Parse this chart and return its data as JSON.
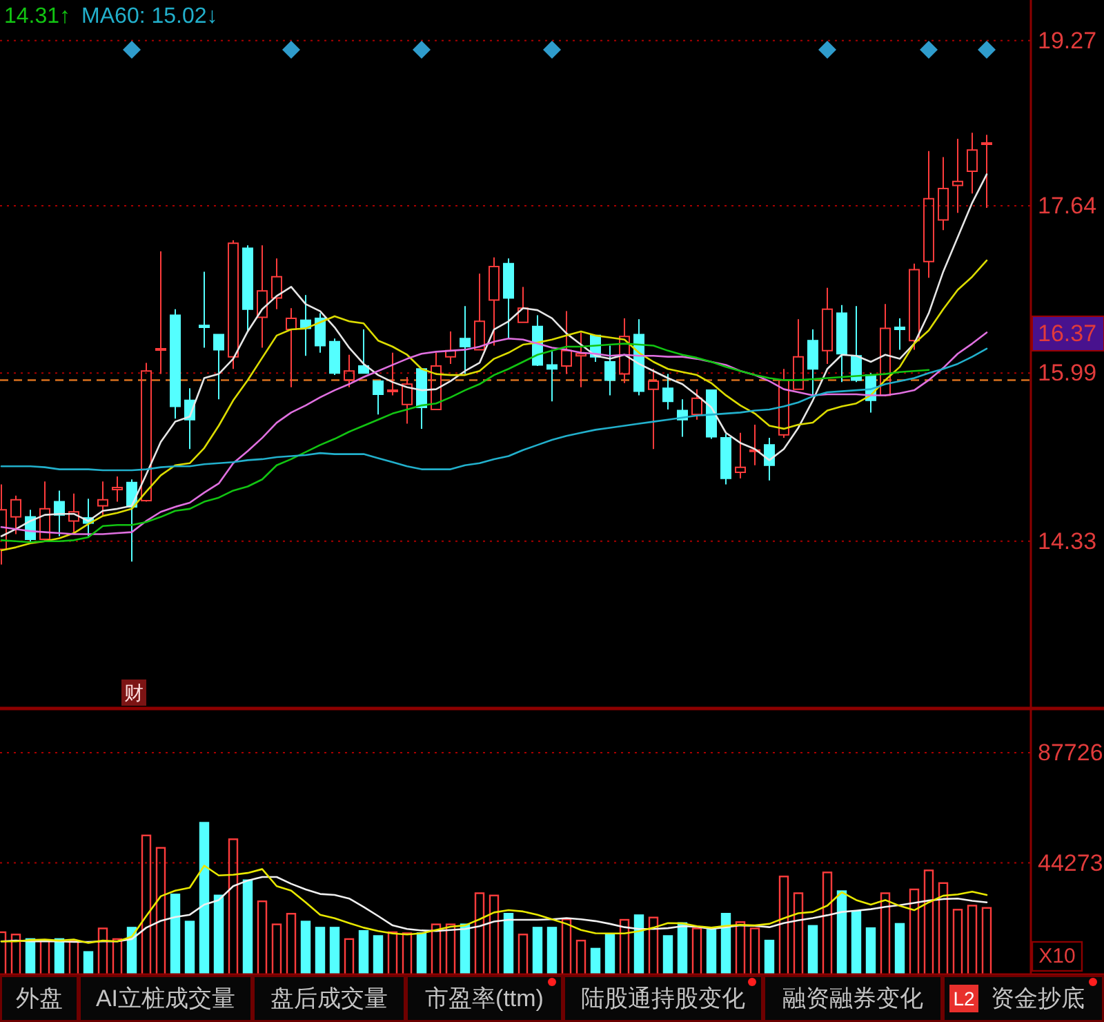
{
  "chart_data": [
    {
      "type": "candlestick",
      "categories": [
        null,
        null,
        null,
        null,
        null,
        null,
        null,
        null,
        null,
        null,
        null,
        null,
        null,
        null,
        null,
        null,
        null,
        null,
        null,
        null,
        null,
        null,
        null,
        null,
        null,
        null,
        null,
        null,
        null,
        null,
        null,
        null,
        null,
        null,
        null,
        null,
        null,
        null,
        null,
        null,
        null,
        null,
        null,
        null,
        null,
        null,
        null,
        null,
        null,
        null,
        null,
        null,
        null,
        null,
        null,
        null,
        null,
        null,
        null,
        null,
        null,
        null,
        null,
        null,
        null,
        null,
        null,
        null,
        null
      ],
      "ohlc": [
        [
          14.25,
          14.89,
          14.1,
          14.64
        ],
        [
          14.57,
          14.78,
          14.4,
          14.74
        ],
        [
          14.57,
          14.64,
          14.31,
          14.35
        ],
        [
          14.35,
          14.92,
          14.33,
          14.65
        ],
        [
          14.72,
          14.83,
          14.38,
          14.59
        ],
        [
          14.53,
          14.8,
          14.4,
          14.62
        ],
        [
          14.56,
          14.75,
          14.38,
          14.51
        ],
        [
          14.68,
          14.92,
          14.59,
          14.74
        ],
        [
          14.84,
          14.97,
          14.72,
          14.86
        ],
        [
          14.91,
          14.94,
          14.13,
          14.67
        ],
        [
          14.73,
          16.09,
          14.72,
          16.01
        ],
        [
          16.22,
          17.19,
          15.98,
          16.23
        ],
        [
          16.56,
          16.62,
          15.54,
          15.66
        ],
        [
          15.72,
          15.84,
          15.24,
          15.53
        ],
        [
          16.46,
          16.99,
          16.24,
          16.44
        ],
        [
          16.37,
          16.37,
          15.73,
          16.22
        ],
        [
          16.15,
          17.3,
          16.03,
          17.27
        ],
        [
          17.22,
          17.25,
          16.4,
          16.62
        ],
        [
          16.54,
          17.25,
          16.24,
          16.8
        ],
        [
          16.73,
          17.12,
          16.62,
          16.94
        ],
        [
          16.42,
          16.63,
          15.85,
          16.53
        ],
        [
          16.51,
          16.76,
          16.16,
          16.43
        ],
        [
          16.53,
          16.58,
          16.19,
          16.26
        ],
        [
          16.3,
          16.33,
          15.97,
          15.99
        ],
        [
          15.92,
          16.17,
          15.85,
          16.01
        ],
        [
          16.06,
          16.42,
          15.99,
          15.99
        ],
        [
          15.91,
          15.91,
          15.58,
          15.78
        ],
        [
          15.81,
          16.19,
          15.77,
          15.82
        ],
        [
          15.68,
          15.95,
          15.49,
          15.88
        ],
        [
          16.03,
          16.03,
          15.44,
          15.65
        ],
        [
          15.63,
          16.19,
          15.63,
          16.06
        ],
        [
          16.15,
          16.4,
          16.08,
          16.21
        ],
        [
          16.33,
          16.65,
          15.98,
          16.25
        ],
        [
          16.22,
          16.97,
          16.22,
          16.5
        ],
        [
          16.71,
          17.13,
          16.26,
          17.04
        ],
        [
          17.07,
          17.12,
          16.33,
          16.73
        ],
        [
          16.49,
          16.84,
          16.49,
          16.63
        ],
        [
          16.45,
          16.56,
          16.06,
          16.07
        ],
        [
          16.07,
          16.22,
          15.71,
          16.03
        ],
        [
          16.06,
          16.6,
          15.98,
          16.21
        ],
        [
          16.16,
          16.39,
          15.85,
          16.18
        ],
        [
          16.36,
          16.36,
          16.1,
          16.15
        ],
        [
          16.1,
          16.26,
          15.77,
          15.92
        ],
        [
          15.98,
          16.53,
          15.89,
          16.35
        ],
        [
          16.37,
          16.52,
          15.77,
          15.81
        ],
        [
          15.83,
          16.03,
          15.24,
          15.91
        ],
        [
          15.84,
          15.98,
          15.63,
          15.71
        ],
        [
          15.62,
          15.73,
          15.36,
          15.53
        ],
        [
          15.58,
          15.83,
          15.53,
          15.74
        ],
        [
          15.82,
          15.82,
          15.34,
          15.36
        ],
        [
          15.35,
          15.39,
          14.89,
          14.95
        ],
        [
          15.01,
          15.4,
          14.95,
          15.06
        ],
        [
          15.22,
          15.48,
          15.08,
          15.23
        ],
        [
          15.28,
          15.35,
          14.93,
          15.08
        ],
        [
          15.38,
          16.03,
          15.35,
          15.92
        ],
        [
          15.83,
          16.52,
          15.83,
          16.15
        ],
        [
          16.31,
          16.42,
          15.76,
          16.03
        ],
        [
          16.21,
          16.83,
          16.08,
          16.62
        ],
        [
          16.58,
          16.66,
          15.9,
          16.18
        ],
        [
          16.16,
          16.65,
          15.9,
          15.92
        ],
        [
          15.97,
          15.99,
          15.6,
          15.72
        ],
        [
          15.77,
          16.67,
          15.76,
          16.43
        ],
        [
          16.44,
          16.53,
          16.22,
          16.42
        ],
        [
          16.31,
          17.07,
          16.22,
          17.01
        ],
        [
          17.09,
          18.18,
          16.93,
          17.71
        ],
        [
          17.5,
          18.12,
          17.4,
          17.81
        ],
        [
          17.84,
          18.3,
          17.57,
          17.88
        ],
        [
          17.98,
          18.36,
          17.76,
          18.19
        ],
        [
          18.25,
          18.34,
          17.62,
          18.26
        ]
      ],
      "colors": [
        "#ff3c3c",
        "#ff3c3c",
        "#54ffff",
        "#ff3c3c",
        "#54ffff",
        "#ff3c3c",
        "#54ffff",
        "#ff3c3c",
        "#ff3c3c",
        "#54ffff",
        "#ff3c3c",
        "#ff3c3c",
        "#54ffff",
        "#54ffff",
        "#54ffff",
        "#54ffff",
        "#ff3c3c",
        "#54ffff",
        "#ff3c3c",
        "#ff3c3c",
        "#ff3c3c",
        "#54ffff",
        "#54ffff",
        "#54ffff",
        "#ff3c3c",
        "#54ffff",
        "#54ffff",
        "#ff3c3c",
        "#ff3c3c",
        "#54ffff",
        "#ff3c3c",
        "#ff3c3c",
        "#54ffff",
        "#ff3c3c",
        "#ff3c3c",
        "#54ffff",
        "#ff3c3c",
        "#54ffff",
        "#54ffff",
        "#ff3c3c",
        "#ff3c3c",
        "#54ffff",
        "#54ffff",
        "#ff3c3c",
        "#54ffff",
        "#ff3c3c",
        "#54ffff",
        "#54ffff",
        "#ff3c3c",
        "#54ffff",
        "#54ffff",
        "#ff3c3c",
        "#ff3c3c",
        "#54ffff",
        "#ff3c3c",
        "#ff3c3c",
        "#54ffff",
        "#ff3c3c",
        "#54ffff",
        "#54ffff",
        "#54ffff",
        "#ff3c3c",
        "#54ffff",
        "#ff3c3c",
        "#ff3c3c",
        "#ff3c3c",
        "#ff3c3c",
        "#ff3c3c",
        "#ff3c3c"
      ],
      "series": [
        {
          "type": "line",
          "color": "#e6e6e6",
          "values": [
            14.38,
            14.45,
            14.53,
            14.59,
            14.6,
            14.6,
            14.53,
            14.63,
            14.65,
            14.68,
            14.99,
            15.31,
            15.51,
            15.56,
            15.94,
            15.98,
            16.13,
            16.4,
            16.62,
            16.75,
            16.84,
            16.67,
            16.6,
            16.44,
            16.24,
            16.08,
            15.97,
            15.9,
            15.85,
            15.82,
            15.83,
            15.91,
            16.01,
            16.09,
            16.42,
            16.5,
            16.63,
            16.61,
            16.53,
            16.38,
            16.27,
            16.16,
            16.13,
            16.17,
            16.08,
            16.01,
            15.94,
            15.88,
            15.77,
            15.65,
            15.4,
            15.3,
            15.24,
            15.13,
            15.24,
            15.45,
            15.72,
            16.03,
            16.17,
            16.16,
            16.1,
            16.17,
            16.13,
            16.28,
            16.58,
            16.99,
            17.33,
            17.67,
            17.95
          ]
        },
        {
          "type": "line",
          "color": "#dcdc00",
          "values": [
            14.24,
            14.27,
            14.31,
            14.33,
            14.36,
            14.41,
            14.5,
            14.58,
            14.61,
            14.65,
            14.82,
            14.98,
            15.08,
            15.1,
            15.25,
            15.47,
            15.72,
            15.92,
            16.14,
            16.36,
            16.42,
            16.43,
            16.49,
            16.55,
            16.5,
            16.48,
            16.31,
            16.25,
            16.17,
            16.03,
            15.98,
            15.97,
            15.97,
            16.01,
            16.13,
            16.19,
            16.27,
            16.29,
            16.32,
            16.36,
            16.4,
            16.36,
            16.34,
            16.32,
            16.19,
            16.1,
            16.03,
            16.0,
            15.97,
            15.89,
            15.77,
            15.67,
            15.59,
            15.47,
            15.44,
            15.48,
            15.5,
            15.62,
            15.66,
            15.69,
            15.77,
            15.92,
            16.05,
            16.28,
            16.41,
            16.62,
            16.81,
            16.94,
            17.1
          ]
        },
        {
          "type": "line",
          "color": "#e070e0",
          "values": [
            14.47,
            14.45,
            14.43,
            14.42,
            14.41,
            14.4,
            14.4,
            14.4,
            14.41,
            14.42,
            14.53,
            14.62,
            14.67,
            14.71,
            14.81,
            14.9,
            15.1,
            15.22,
            15.35,
            15.5,
            15.6,
            15.67,
            15.75,
            15.82,
            15.88,
            15.95,
            16.01,
            16.07,
            16.13,
            16.18,
            16.2,
            16.21,
            16.22,
            16.25,
            16.3,
            16.33,
            16.32,
            16.28,
            16.24,
            16.22,
            16.19,
            16.18,
            16.16,
            16.17,
            16.16,
            16.16,
            16.15,
            16.15,
            16.13,
            16.1,
            16.07,
            16.01,
            15.97,
            15.91,
            15.83,
            15.8,
            15.77,
            15.78,
            15.78,
            15.78,
            15.77,
            15.77,
            15.79,
            15.82,
            15.92,
            16.04,
            16.18,
            16.28,
            16.39
          ]
        },
        {
          "type": "line",
          "name": "14.31↑",
          "color": "#12c412",
          "values": [
            14.34,
            14.33,
            14.32,
            14.33,
            14.33,
            14.34,
            14.37,
            14.48,
            14.49,
            14.49,
            14.52,
            14.57,
            14.63,
            14.65,
            14.72,
            14.76,
            14.83,
            14.87,
            14.94,
            15.08,
            15.14,
            15.21,
            15.28,
            15.34,
            15.41,
            15.47,
            15.53,
            15.59,
            15.63,
            15.67,
            15.69,
            15.75,
            15.82,
            15.88,
            15.97,
            16.03,
            16.1,
            16.17,
            16.21,
            16.25,
            16.25,
            16.26,
            16.27,
            16.28,
            16.27,
            16.26,
            16.21,
            16.17,
            16.14,
            16.1,
            16.05,
            16.01,
            15.97,
            15.94,
            15.92,
            15.92,
            15.93,
            15.94,
            15.95,
            15.96,
            15.97,
            15.98,
            16.0,
            16.01,
            16.02,
            null,
            null,
            null,
            null
          ]
        },
        {
          "type": "line",
          "name": "MA60: 15.02↓",
          "color": "#22b0cc",
          "values": [
            15.07,
            15.07,
            15.07,
            15.06,
            15.04,
            15.04,
            15.04,
            15.03,
            15.03,
            15.03,
            15.04,
            15.06,
            15.07,
            15.07,
            15.09,
            15.1,
            15.11,
            15.13,
            15.14,
            15.16,
            15.17,
            15.18,
            15.2,
            15.19,
            15.19,
            15.19,
            15.15,
            15.11,
            15.07,
            15.04,
            15.04,
            15.04,
            15.08,
            15.1,
            15.14,
            15.17,
            15.23,
            15.28,
            15.33,
            15.37,
            15.4,
            15.43,
            15.45,
            15.47,
            15.49,
            15.51,
            15.53,
            15.55,
            15.57,
            15.58,
            15.59,
            15.6,
            15.62,
            15.63,
            15.66,
            15.7,
            15.76,
            15.8,
            15.81,
            15.82,
            15.83,
            15.88,
            15.91,
            15.94,
            15.99,
            16.03,
            16.08,
            16.15,
            16.23
          ]
        },
        {
          "type": "scatter",
          "color": "#2f9ccc",
          "marker": "diamond",
          "values": [
            null,
            null,
            null,
            null,
            null,
            null,
            null,
            null,
            null,
            19.18,
            null,
            null,
            null,
            null,
            null,
            null,
            null,
            null,
            null,
            null,
            19.18,
            null,
            null,
            null,
            null,
            null,
            null,
            null,
            null,
            19.18,
            null,
            null,
            null,
            null,
            null,
            null,
            null,
            null,
            19.18,
            null,
            null,
            null,
            null,
            null,
            null,
            null,
            null,
            null,
            null,
            null,
            null,
            null,
            null,
            null,
            null,
            null,
            null,
            19.18,
            null,
            null,
            null,
            null,
            null,
            null,
            19.18,
            null,
            null,
            null,
            19.18
          ]
        }
      ],
      "ylim": [
        12.68,
        19.67
      ],
      "yticks": [
        14.33,
        15.99,
        17.64,
        19.27
      ],
      "grid": "y",
      "tick_labels": "y",
      "legend": "top left",
      "ref_lines": [
        {
          "axis": "y",
          "value": 15.92,
          "color": "#d8701e",
          "line_style": "dashed"
        }
      ],
      "annotations": [
        "16.37",
        "财"
      ]
    },
    {
      "type": "bar",
      "categories": [
        null,
        null,
        null,
        null,
        null,
        null,
        null,
        null,
        null,
        null,
        null,
        null,
        null,
        null,
        null,
        null,
        null,
        null,
        null,
        null,
        null,
        null,
        null,
        null,
        null,
        null,
        null,
        null,
        null,
        null,
        null,
        null,
        null,
        null,
        null,
        null,
        null,
        null,
        null,
        null,
        null,
        null,
        null,
        null,
        null,
        null,
        null,
        null,
        null,
        null,
        null,
        null,
        null,
        null,
        null,
        null,
        null,
        null,
        null,
        null,
        null,
        null,
        null,
        null,
        null,
        null,
        null,
        null,
        null
      ],
      "series": [
        {
          "type": "bar",
          "colors": [
            "#ff3c3c",
            "#ff3c3c",
            "#54ffff",
            "#ff3c3c",
            "#54ffff",
            "#ff3c3c",
            "#54ffff",
            "#ff3c3c",
            "#ff3c3c",
            "#54ffff",
            "#ff3c3c",
            "#ff3c3c",
            "#54ffff",
            "#54ffff",
            "#54ffff",
            "#54ffff",
            "#ff3c3c",
            "#54ffff",
            "#ff3c3c",
            "#ff3c3c",
            "#ff3c3c",
            "#54ffff",
            "#54ffff",
            "#54ffff",
            "#ff3c3c",
            "#54ffff",
            "#54ffff",
            "#ff3c3c",
            "#ff3c3c",
            "#54ffff",
            "#ff3c3c",
            "#ff3c3c",
            "#54ffff",
            "#ff3c3c",
            "#ff3c3c",
            "#54ffff",
            "#ff3c3c",
            "#54ffff",
            "#54ffff",
            "#ff3c3c",
            "#ff3c3c",
            "#54ffff",
            "#54ffff",
            "#ff3c3c",
            "#54ffff",
            "#ff3c3c",
            "#54ffff",
            "#54ffff",
            "#ff3c3c",
            "#54ffff",
            "#54ffff",
            "#ff3c3c",
            "#ff3c3c",
            "#54ffff",
            "#ff3c3c",
            "#ff3c3c",
            "#54ffff",
            "#ff3c3c",
            "#54ffff",
            "#54ffff",
            "#54ffff",
            "#ff3c3c",
            "#54ffff",
            "#ff3c3c",
            "#ff3c3c",
            "#ff3c3c",
            "#ff3c3c",
            "#ff3c3c",
            "#ff3c3c"
          ],
          "values": [
            16900,
            16000,
            14200,
            13800,
            14200,
            13300,
            9100,
            18400,
            14200,
            18700,
            55100,
            50200,
            31800,
            21100,
            60100,
            31400,
            53600,
            37400,
            29100,
            20000,
            24200,
            21100,
            18700,
            18700,
            14200,
            17400,
            15400,
            16900,
            16500,
            16500,
            20000,
            20000,
            20000,
            32300,
            31400,
            24200,
            16000,
            18700,
            18700,
            22000,
            13600,
            10400,
            16000,
            21800,
            23600,
            22700,
            15400,
            20500,
            18400,
            17800,
            24200,
            20900,
            18400,
            13600,
            38900,
            32300,
            19400,
            40500,
            33100,
            25100,
            18500,
            32300,
            20200,
            33800,
            41300,
            36300,
            25800,
            27400,
            26500
          ]
        },
        {
          "type": "line",
          "color": "#f0f0f0",
          "values": [
            13300,
            13600,
            13300,
            13300,
            13300,
            13100,
            13100,
            13300,
            13300,
            14200,
            18700,
            21400,
            22900,
            23800,
            27800,
            29600,
            35100,
            37300,
            38700,
            38700,
            36000,
            33800,
            32000,
            31600,
            30200,
            26900,
            23300,
            19600,
            18200,
            17600,
            17400,
            17800,
            18200,
            19300,
            21100,
            21800,
            21800,
            21800,
            22000,
            22500,
            22000,
            21300,
            20200,
            18900,
            18200,
            18200,
            18500,
            19300,
            19100,
            18200,
            18900,
            19600,
            19400,
            18900,
            20500,
            21600,
            22500,
            23600,
            24900,
            25400,
            26000,
            26900,
            27600,
            28500,
            29400,
            30000,
            30200,
            29300,
            28700
          ]
        },
        {
          "type": "line",
          "color": "#e8e800",
          "values": [
            13300,
            13300,
            13800,
            14000,
            13600,
            14000,
            12700,
            13600,
            13300,
            15100,
            23300,
            31100,
            33300,
            34500,
            43200,
            39300,
            39600,
            40300,
            41800,
            35100,
            33300,
            28700,
            23800,
            22400,
            20500,
            18700,
            17400,
            16400,
            16000,
            16500,
            17800,
            19100,
            19600,
            22000,
            24700,
            25600,
            25100,
            23800,
            22000,
            20200,
            17800,
            16500,
            16400,
            16400,
            17300,
            18700,
            20500,
            20400,
            19300,
            18700,
            19400,
            19800,
            19600,
            20200,
            22400,
            24400,
            24900,
            27400,
            32700,
            29600,
            27800,
            29600,
            27300,
            25600,
            28700,
            31300,
            31800,
            32900,
            31600
          ]
        }
      ],
      "ylim": [
        0,
        105200
      ],
      "yticks": [
        44273,
        87726
      ],
      "grid": "y",
      "tick_labels": "y",
      "ylabel": "X10",
      "annotations": [
        "外盘",
        "AI立桩成交量",
        "盘后成交量",
        "市盈率(ttm)",
        "陆股通持股变化",
        "融资融券变化",
        "L2",
        "资金抄底"
      ]
    }
  ]
}
